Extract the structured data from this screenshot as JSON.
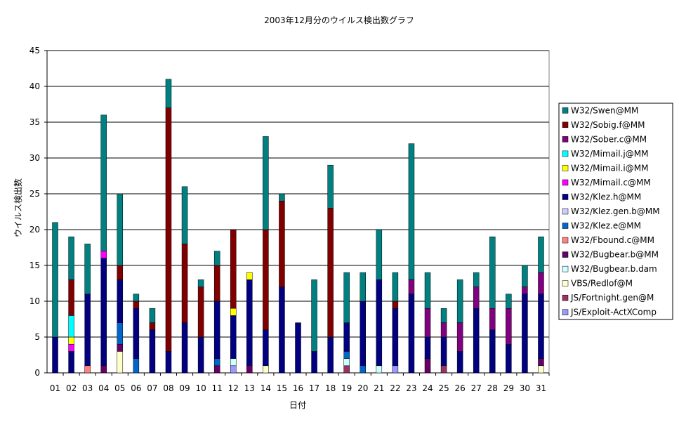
{
  "chart_data": {
    "type": "bar",
    "stacked": true,
    "title": "2003年12月分のウイルス検出数グラフ",
    "xlabel": "日付",
    "ylabel": "ウイルス検出数",
    "ylim": [
      0,
      45
    ],
    "yticks": [
      0,
      5,
      10,
      15,
      20,
      25,
      30,
      35,
      40,
      45
    ],
    "grid": true,
    "legend_position": "right",
    "categories": [
      "01",
      "02",
      "03",
      "04",
      "05",
      "06",
      "07",
      "08",
      "09",
      "10",
      "11",
      "12",
      "13",
      "14",
      "15",
      "16",
      "17",
      "18",
      "19",
      "20",
      "21",
      "22",
      "23",
      "24",
      "25",
      "26",
      "27",
      "28",
      "29",
      "30",
      "31"
    ],
    "series": [
      {
        "name": "JS/Exploit-ActXComp",
        "color": "#9999ff",
        "values": [
          0,
          0,
          0,
          0,
          0,
          0,
          0,
          0,
          0,
          0,
          0,
          1,
          0,
          0,
          0,
          0,
          0,
          0,
          0,
          0,
          0,
          1,
          0,
          0,
          0,
          0,
          0,
          0,
          0,
          0,
          0
        ]
      },
      {
        "name": "JS/Fortnight.gen@M",
        "color": "#993366",
        "values": [
          0,
          0,
          0,
          0,
          0,
          0,
          0,
          0,
          0,
          0,
          0,
          0,
          0,
          0,
          0,
          0,
          0,
          0,
          1,
          0,
          0,
          0,
          0,
          0,
          1,
          0,
          0,
          0,
          0,
          0,
          0
        ]
      },
      {
        "name": "VBS/Redlof@M",
        "color": "#ffffcc",
        "values": [
          0,
          0,
          0,
          0,
          3,
          0,
          0,
          0,
          0,
          0,
          0,
          0,
          0,
          1,
          0,
          0,
          0,
          0,
          0,
          0,
          0,
          0,
          0,
          0,
          0,
          0,
          0,
          0,
          0,
          0,
          1
        ]
      },
      {
        "name": "W32/Bugbear.b.dam",
        "color": "#ccffff",
        "values": [
          0,
          0,
          0,
          0,
          0,
          0,
          0,
          0,
          0,
          0,
          0,
          1,
          0,
          0,
          0,
          0,
          0,
          0,
          1,
          0,
          1,
          0,
          0,
          0,
          0,
          0,
          0,
          0,
          0,
          0,
          0
        ]
      },
      {
        "name": "W32/Bugbear.b@MM",
        "color": "#660066",
        "values": [
          0,
          0,
          0,
          1,
          1,
          0,
          0,
          0,
          0,
          0,
          1,
          0,
          1,
          0,
          0,
          0,
          0,
          0,
          0,
          0,
          0,
          0,
          0,
          2,
          0,
          0,
          0,
          0,
          0,
          0,
          1
        ]
      },
      {
        "name": "W32/Fbound.c@MM",
        "color": "#ff8080",
        "values": [
          0,
          0,
          1,
          0,
          0,
          0,
          0,
          0,
          0,
          0,
          0,
          0,
          0,
          0,
          0,
          0,
          0,
          0,
          0,
          0,
          0,
          0,
          0,
          0,
          0,
          0,
          0,
          0,
          0,
          0,
          0
        ]
      },
      {
        "name": "W32/Klez.e@MM",
        "color": "#0066cc",
        "values": [
          0,
          0,
          0,
          0,
          3,
          2,
          0,
          0,
          0,
          0,
          1,
          0,
          0,
          0,
          0,
          0,
          0,
          0,
          1,
          1,
          0,
          0,
          0,
          0,
          0,
          0,
          0,
          0,
          0,
          0,
          0
        ]
      },
      {
        "name": "W32/Klez.gen.b@MM",
        "color": "#ccccff",
        "values": [
          0,
          0,
          0,
          0,
          0,
          0,
          0,
          0,
          0,
          0,
          0,
          0,
          0,
          0,
          0,
          0,
          0,
          0,
          0,
          0,
          0,
          0,
          0,
          0,
          0,
          0,
          0,
          0,
          0,
          0,
          0
        ]
      },
      {
        "name": "W32/Klez.h@MM",
        "color": "#000080",
        "values": [
          5,
          3,
          10,
          15,
          6,
          7,
          6,
          3,
          7,
          5,
          8,
          6,
          12,
          5,
          12,
          7,
          3,
          5,
          4,
          9,
          12,
          8,
          11,
          3,
          4,
          3,
          9,
          6,
          4,
          11,
          9
        ]
      },
      {
        "name": "W32/Mimail.c@MM",
        "color": "#ff00ff",
        "values": [
          0,
          1,
          0,
          1,
          0,
          0,
          0,
          0,
          0,
          0,
          0,
          0,
          0,
          0,
          0,
          0,
          0,
          0,
          0,
          0,
          0,
          0,
          0,
          0,
          0,
          0,
          0,
          0,
          0,
          0,
          0
        ]
      },
      {
        "name": "W32/Mimail.i@MM",
        "color": "#ffff00",
        "values": [
          0,
          1,
          0,
          0,
          0,
          0,
          0,
          0,
          0,
          0,
          0,
          1,
          1,
          0,
          0,
          0,
          0,
          0,
          0,
          0,
          0,
          0,
          0,
          0,
          0,
          0,
          0,
          0,
          0,
          0,
          0
        ]
      },
      {
        "name": "W32/Mimail.j@MM",
        "color": "#00ffff",
        "values": [
          0,
          3,
          0,
          0,
          0,
          0,
          0,
          0,
          0,
          0,
          0,
          0,
          0,
          0,
          0,
          0,
          0,
          0,
          0,
          0,
          0,
          0,
          0,
          0,
          0,
          0,
          0,
          0,
          0,
          0,
          0
        ]
      },
      {
        "name": "W32/Sober.c@MM",
        "color": "#800080",
        "values": [
          0,
          0,
          0,
          0,
          0,
          0,
          0,
          0,
          0,
          0,
          0,
          0,
          0,
          0,
          0,
          0,
          0,
          0,
          0,
          0,
          0,
          0,
          2,
          4,
          2,
          4,
          3,
          3,
          5,
          1,
          3
        ]
      },
      {
        "name": "W32/Sobig.f@MM",
        "color": "#800000",
        "values": [
          0,
          5,
          0,
          0,
          2,
          1,
          1,
          34,
          11,
          7,
          5,
          11,
          0,
          14,
          12,
          0,
          0,
          18,
          0,
          0,
          0,
          1,
          0,
          0,
          0,
          0,
          0,
          0,
          0,
          0,
          0
        ]
      },
      {
        "name": "W32/Swen@MM",
        "color": "#008080",
        "values": [
          16,
          6,
          7,
          19,
          10,
          1,
          2,
          4,
          8,
          1,
          2,
          0,
          0,
          13,
          1,
          0,
          10,
          6,
          7,
          4,
          7,
          4,
          19,
          5,
          2,
          6,
          2,
          10,
          2,
          3,
          5
        ]
      }
    ]
  }
}
